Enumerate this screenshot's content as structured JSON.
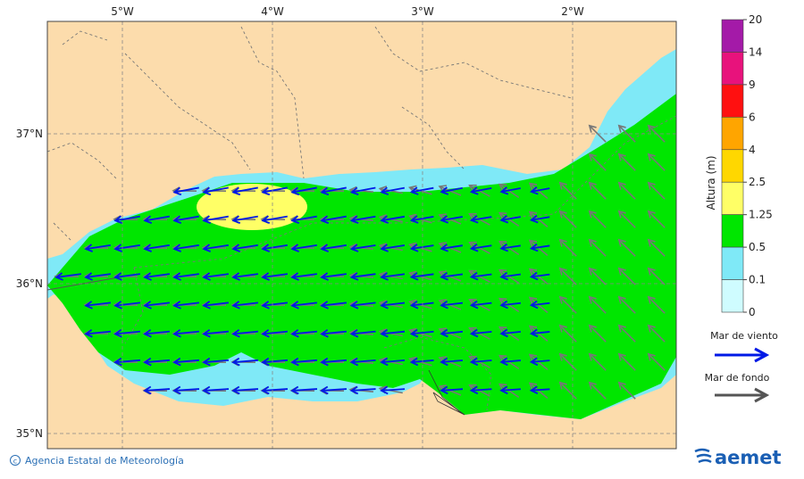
{
  "map": {
    "lon_labels": [
      "5°W",
      "4°W",
      "3°W",
      "2°W"
    ],
    "lat_labels": [
      "37°N",
      "36°N",
      "35°N"
    ]
  },
  "legend": {
    "title": "Altura (m)",
    "levels": [
      "20",
      "14",
      "9",
      "6",
      "4",
      "2.5",
      "1.25",
      "0.5",
      "0.1",
      "0"
    ],
    "colors": [
      "#a41aa8",
      "#e8127c",
      "#ff1010",
      "#ffa500",
      "#ffd700",
      "#ffff66",
      "#00e600",
      "#7fe9f7",
      "#cffcff"
    ],
    "wind_label": "Mar de viento",
    "swell_label": "Mar de fondo"
  },
  "footer": {
    "credit": "Agencia Estatal de Meteorología",
    "logo": "aemet"
  }
}
